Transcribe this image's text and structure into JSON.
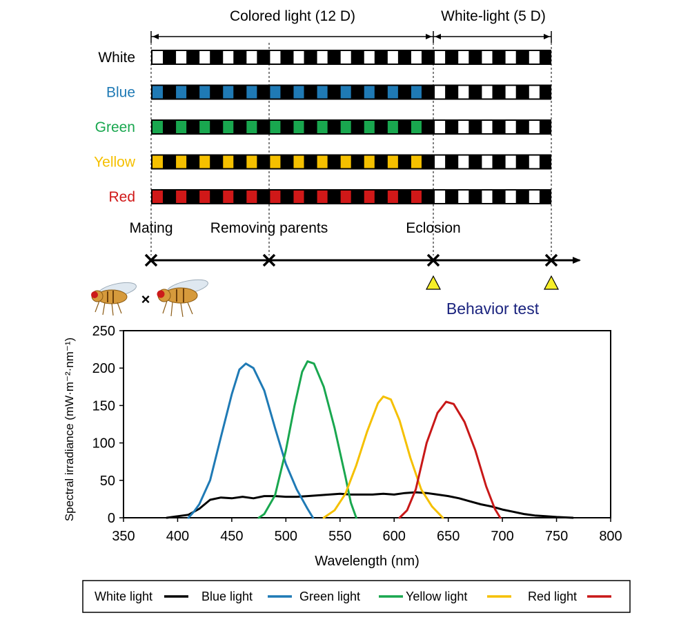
{
  "timeline": {
    "colored_phase_label": "Colored light (12 D)",
    "white_phase_label": "White-light (5 D)",
    "rows": [
      {
        "label": "White",
        "color": "#000000",
        "light_color": "#ffffff"
      },
      {
        "label": "Blue",
        "color": "#1f7ab5",
        "light_color": "#1f7ab5"
      },
      {
        "label": "Green",
        "color": "#19a74f",
        "light_color": "#19a74f"
      },
      {
        "label": "Yellow",
        "color": "#f5c000",
        "light_color": "#f5c000"
      },
      {
        "label": "Red",
        "color": "#d01818",
        "light_color": "#d01818"
      }
    ],
    "colored_days": 12,
    "white_days": 5,
    "events": [
      "Mating",
      "Removing parents",
      "Eclosion"
    ],
    "cross_symbol": "×",
    "behavior_test_label": "Behavior test",
    "behavior_test_color": "#1a237e",
    "triangle_color": "#f7ef28"
  },
  "chart_data": {
    "type": "line",
    "title": "",
    "xlabel": "Wavelength (nm)",
    "ylabel": "Spectral irradiance (mW·m⁻²·nm⁻¹)",
    "xlim": [
      350,
      800
    ],
    "ylim": [
      0,
      250
    ],
    "xticks": [
      350,
      400,
      450,
      500,
      550,
      600,
      650,
      700,
      750,
      800
    ],
    "yticks": [
      0,
      50,
      100,
      150,
      200,
      250
    ],
    "legend_position": "bottom",
    "series": [
      {
        "name": "White light",
        "color": "#000000",
        "points": [
          [
            390,
            0
          ],
          [
            400,
            2
          ],
          [
            410,
            4
          ],
          [
            420,
            12
          ],
          [
            430,
            24
          ],
          [
            440,
            27
          ],
          [
            450,
            26
          ],
          [
            460,
            28
          ],
          [
            470,
            26
          ],
          [
            480,
            29
          ],
          [
            490,
            29
          ],
          [
            500,
            28
          ],
          [
            510,
            28
          ],
          [
            520,
            29
          ],
          [
            530,
            30
          ],
          [
            540,
            31
          ],
          [
            550,
            32
          ],
          [
            560,
            31
          ],
          [
            570,
            31
          ],
          [
            580,
            31
          ],
          [
            590,
            32
          ],
          [
            600,
            31
          ],
          [
            610,
            33
          ],
          [
            620,
            34
          ],
          [
            630,
            33
          ],
          [
            640,
            31
          ],
          [
            650,
            29
          ],
          [
            660,
            26
          ],
          [
            670,
            22
          ],
          [
            680,
            18
          ],
          [
            690,
            15
          ],
          [
            700,
            11
          ],
          [
            710,
            8
          ],
          [
            720,
            5
          ],
          [
            730,
            3
          ],
          [
            740,
            2
          ],
          [
            750,
            1
          ],
          [
            765,
            0
          ]
        ]
      },
      {
        "name": "Blue light",
        "color": "#1f7ab5",
        "points": [
          [
            410,
            0
          ],
          [
            415,
            8
          ],
          [
            420,
            18
          ],
          [
            430,
            50
          ],
          [
            440,
            108
          ],
          [
            450,
            165
          ],
          [
            457,
            198
          ],
          [
            463,
            206
          ],
          [
            470,
            200
          ],
          [
            480,
            170
          ],
          [
            490,
            120
          ],
          [
            500,
            72
          ],
          [
            510,
            38
          ],
          [
            520,
            12
          ],
          [
            525,
            0
          ]
        ]
      },
      {
        "name": "Green light",
        "color": "#19a74f",
        "points": [
          [
            475,
            0
          ],
          [
            480,
            5
          ],
          [
            490,
            30
          ],
          [
            500,
            90
          ],
          [
            508,
            150
          ],
          [
            515,
            195
          ],
          [
            520,
            209
          ],
          [
            526,
            206
          ],
          [
            535,
            175
          ],
          [
            545,
            120
          ],
          [
            555,
            55
          ],
          [
            560,
            20
          ],
          [
            565,
            0
          ]
        ]
      },
      {
        "name": "Yellow light",
        "color": "#f5c000",
        "points": [
          [
            535,
            0
          ],
          [
            545,
            10
          ],
          [
            555,
            32
          ],
          [
            565,
            70
          ],
          [
            575,
            115
          ],
          [
            585,
            153
          ],
          [
            590,
            162
          ],
          [
            597,
            158
          ],
          [
            605,
            130
          ],
          [
            615,
            80
          ],
          [
            625,
            38
          ],
          [
            635,
            15
          ],
          [
            645,
            0
          ]
        ]
      },
      {
        "name": "Red light",
        "color": "#c81818",
        "points": [
          [
            605,
            0
          ],
          [
            612,
            10
          ],
          [
            620,
            38
          ],
          [
            630,
            100
          ],
          [
            640,
            140
          ],
          [
            648,
            155
          ],
          [
            655,
            152
          ],
          [
            665,
            128
          ],
          [
            675,
            90
          ],
          [
            685,
            42
          ],
          [
            693,
            12
          ],
          [
            698,
            0
          ]
        ]
      }
    ]
  }
}
